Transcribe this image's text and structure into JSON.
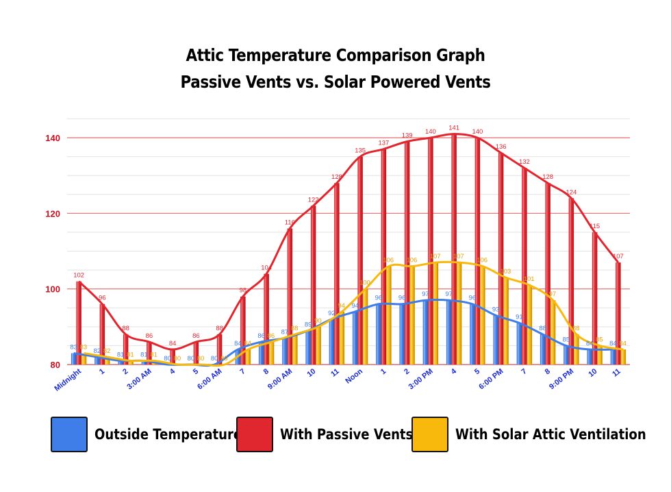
{
  "title_line1": "Attic Temperature Comparison Graph",
  "title_line2": "Passive Vents vs. Solar Powered Vents",
  "colors": {
    "outside": "#3f7de8",
    "passive": "#e0262f",
    "solar": "#f8b80c",
    "axis_label": "#c8101e",
    "xtick": "#1c2bcf"
  },
  "chart_data": {
    "type": "bar",
    "categories": [
      "Midnight",
      "1",
      "2",
      "3:00 AM",
      "4",
      "5",
      "6:00 AM",
      "7",
      "8",
      "9:00 AM",
      "10",
      "11",
      "Noon",
      "1",
      "2",
      "3:00 PM",
      "4",
      "5",
      "6:00 PM",
      "7",
      "8",
      "9:00 PM",
      "10",
      "11"
    ],
    "series": [
      {
        "name": "Outside Temperature",
        "values": [
          83,
          82,
          81,
          81,
          80,
          80,
          80,
          84,
          86,
          87,
          89,
          92,
          94,
          96,
          96,
          97,
          97,
          96,
          93,
          91,
          88,
          85,
          84,
          84
        ]
      },
      {
        "name": "With Passive Vents",
        "values": [
          102,
          96,
          88,
          86,
          84,
          86,
          88,
          98,
          104,
          116,
          122,
          128,
          135,
          137,
          139,
          140,
          141,
          140,
          136,
          132,
          128,
          124,
          115,
          107
        ]
      },
      {
        "name": "With Solar Attic Ventilation",
        "values": [
          83,
          82,
          81,
          81,
          80,
          80,
          80,
          84,
          86,
          88,
          90,
          94,
          100,
          106,
          106,
          107,
          107,
          106,
          103,
          101,
          97,
          88,
          85,
          84
        ]
      }
    ],
    "ylim": [
      80,
      145
    ],
    "yticks": [
      80,
      100,
      120,
      140
    ],
    "title": "Attic Temperature Comparison Graph / Passive Vents vs. Solar Powered Vents",
    "xlabel": "",
    "ylabel": ""
  },
  "legend": {
    "outside": "Outside Temperature",
    "passive": "With Passive Vents",
    "solar": "With Solar Attic Ventilation"
  }
}
